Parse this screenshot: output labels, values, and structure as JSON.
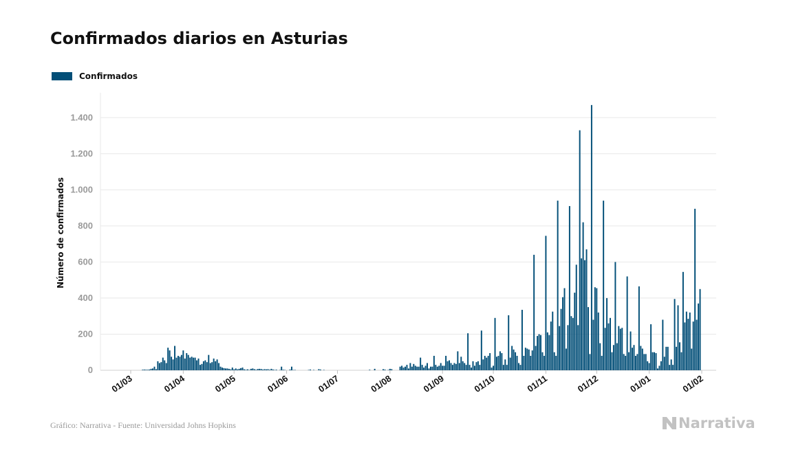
{
  "header": {
    "title": "Confirmados diarios en Asturias"
  },
  "legend": {
    "label": "Confirmados",
    "color": "#034f78"
  },
  "footer": {
    "source": "Gráfico: Narrativa - Fuente: Universidad Johns Hopkins",
    "brand": "Narrativa",
    "brand_icon": "narrativa-n-logo-icon"
  },
  "colors": {
    "bar": "#034f78",
    "grid": "#e8e8e8",
    "tick_label": "#9a9a9a",
    "axis_title": "#111111"
  },
  "chart_data": {
    "type": "bar",
    "title": "Confirmados diarios en Asturias",
    "ylabel": "Número de confirmados",
    "xlabel": "",
    "ylim": [
      0,
      1500
    ],
    "yticks": [
      0,
      200,
      400,
      600,
      800,
      1000,
      1200,
      1400
    ],
    "ytick_labels": [
      "0",
      "200",
      "400",
      "600",
      "800",
      "1.000",
      "1.200",
      "1.400"
    ],
    "xtick_labels": [
      "01/03",
      "01/04",
      "01/05",
      "01/06",
      "01/07",
      "01/08",
      "01/09",
      "01/10",
      "01/11",
      "01/12",
      "01/01",
      "01/02"
    ],
    "grid": true,
    "legend_position": "top-left",
    "series": [
      {
        "name": "Confirmados"
      }
    ],
    "x_start": "2020-02-26",
    "values": [
      0,
      0,
      0,
      0,
      0,
      0,
      0,
      0,
      0,
      0,
      0,
      3,
      4,
      3,
      3,
      4,
      8,
      10,
      20,
      6,
      50,
      40,
      45,
      70,
      55,
      40,
      125,
      110,
      75,
      60,
      135,
      70,
      80,
      75,
      85,
      110,
      65,
      95,
      85,
      70,
      75,
      70,
      70,
      55,
      65,
      30,
      35,
      50,
      55,
      45,
      85,
      40,
      45,
      65,
      50,
      60,
      40,
      20,
      15,
      12,
      10,
      10,
      8,
      5,
      15,
      5,
      10,
      5,
      8,
      12,
      15,
      5,
      3,
      5,
      2,
      8,
      10,
      6,
      3,
      7,
      8,
      7,
      4,
      6,
      5,
      6,
      3,
      8,
      4,
      2,
      3,
      0,
      2,
      20,
      3,
      2,
      0,
      0,
      4,
      20,
      2,
      2,
      0,
      0,
      0,
      0,
      0,
      0,
      0,
      2,
      4,
      0,
      2,
      0,
      0,
      6,
      4,
      0,
      2,
      0,
      0,
      0,
      0,
      0,
      0,
      0,
      0,
      0,
      0,
      0,
      0,
      0,
      0,
      0,
      0,
      0,
      0,
      0,
      0,
      0,
      0,
      0,
      0,
      0,
      0,
      3,
      0,
      0,
      8,
      0,
      0,
      0,
      0,
      6,
      4,
      0,
      2,
      8,
      6,
      0,
      0,
      0,
      0,
      20,
      25,
      15,
      20,
      30,
      10,
      40,
      20,
      35,
      25,
      20,
      20,
      70,
      30,
      15,
      25,
      40,
      10,
      20,
      20,
      80,
      30,
      20,
      25,
      40,
      25,
      25,
      80,
      50,
      55,
      40,
      30,
      40,
      35,
      105,
      40,
      75,
      50,
      40,
      30,
      205,
      30,
      15,
      50,
      25,
      45,
      50,
      30,
      220,
      60,
      80,
      70,
      80,
      95,
      15,
      25,
      290,
      75,
      80,
      105,
      95,
      30,
      60,
      30,
      305,
      70,
      135,
      115,
      100,
      80,
      40,
      30,
      335,
      80,
      125,
      120,
      115,
      80,
      110,
      640,
      135,
      190,
      200,
      195,
      100,
      80,
      745,
      210,
      195,
      270,
      325,
      100,
      80,
      940,
      245,
      340,
      405,
      455,
      120,
      250,
      910,
      300,
      290,
      430,
      585,
      250,
      1330,
      620,
      820,
      610,
      670,
      350,
      90,
      1470,
      280,
      460,
      455,
      320,
      150,
      80,
      940,
      235,
      400,
      260,
      290,
      100,
      140,
      600,
      150,
      245,
      230,
      235,
      90,
      80,
      520,
      100,
      215,
      125,
      140,
      80,
      90,
      465,
      135,
      120,
      90,
      90,
      50,
      40,
      255,
      100,
      100,
      95,
      10,
      25,
      50,
      280,
      75,
      130,
      130,
      30,
      60,
      30,
      395,
      130,
      360,
      155,
      100,
      545,
      265,
      325,
      285,
      320,
      120,
      270,
      895,
      280,
      370,
      450
    ]
  }
}
